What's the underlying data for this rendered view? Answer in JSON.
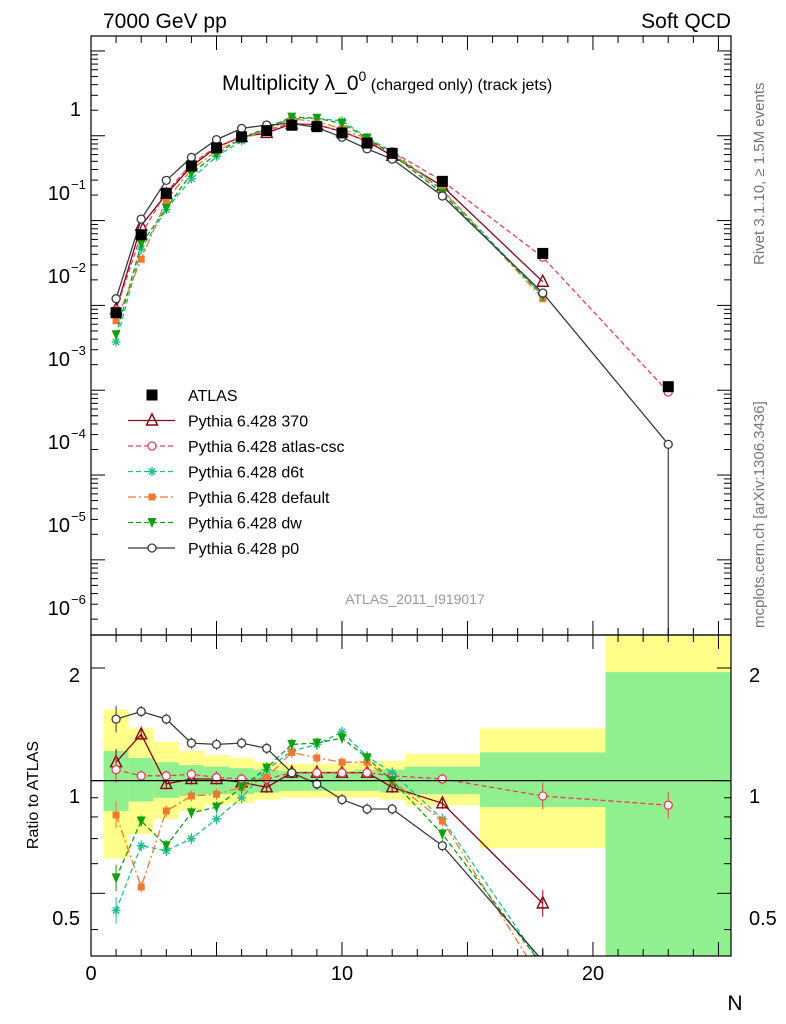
{
  "header": {
    "left": "7000 GeV pp",
    "right": "Soft QCD"
  },
  "plot_title": {
    "main": "Multiplicity λ_0",
    "sup": "0",
    "sub": " (charged only) (track jets)"
  },
  "side_labels": {
    "rivet": "Rivet 3.1.10, ≥ 1.5M events",
    "mcplots": "mcplots.cern.ch [arXiv:1306.3436]"
  },
  "analysis_id": "ATLAS_2011_I919017",
  "xlabel": "N",
  "ratio_ylabel": "Ratio to ATLAS",
  "main_tick_labels": [
    {
      "b": "1",
      "e": ""
    },
    {
      "b": "10",
      "e": "−1"
    },
    {
      "b": "10",
      "e": "−2"
    },
    {
      "b": "10",
      "e": "−3"
    },
    {
      "b": "10",
      "e": "−4"
    },
    {
      "b": "10",
      "e": "−5"
    },
    {
      "b": "10",
      "e": "−6"
    }
  ],
  "ratio_tick_labels": [
    "2",
    "1",
    "0.5"
  ],
  "x_tick_labels": [
    "0",
    "10",
    "20"
  ],
  "chart_data": {
    "type": "line",
    "x_range": [
      0,
      25.5
    ],
    "y_range_log": [
      1.3e-07,
      1.5
    ],
    "ratio_range_log": [
      0.34,
      2.45
    ],
    "x": [
      1,
      2,
      3,
      4,
      5,
      6,
      7,
      8,
      9,
      10,
      11,
      12,
      14,
      18,
      23
    ],
    "colors": {
      "ATLAS": "#000000",
      "Pythia 6.428 370": "#8b0015",
      "Pythia 6.428 atlas-csc": "#e8405a",
      "Pythia 6.428 d6t": "#20c08a",
      "Pythia 6.428 default": "#f07830",
      "Pythia 6.428 dw": "#10a010",
      "Pythia 6.428 p0": "#3a3a3a"
    },
    "series": [
      {
        "name": "ATLAS",
        "marker": "square",
        "dash": "none",
        "values": [
          0.00082,
          0.0068,
          0.021,
          0.044,
          0.072,
          0.097,
          0.115,
          0.133,
          0.128,
          0.108,
          0.082,
          0.062,
          0.029,
          0.0041,
          0.00011
        ]
      },
      {
        "name": "Pythia 6.428 370",
        "marker": "triangle",
        "dash": "none",
        "values": [
          0.0009,
          0.0087,
          0.0205,
          0.0435,
          0.073,
          0.097,
          0.108,
          0.138,
          0.135,
          0.112,
          0.086,
          0.058,
          0.0255,
          0.0019,
          null
        ]
      },
      {
        "name": "Pythia 6.428 atlas-csc",
        "marker": "circle",
        "dash": "5,3",
        "values": [
          0.00088,
          0.0069,
          0.0215,
          0.047,
          0.074,
          0.098,
          0.116,
          0.14,
          0.135,
          0.113,
          0.086,
          0.065,
          0.0293,
          0.0037,
          9.5e-05
        ]
      },
      {
        "name": "Pythia 6.428 d6t",
        "marker": "star",
        "dash": "5,3",
        "values": [
          0.00037,
          0.0046,
          0.0135,
          0.031,
          0.057,
          0.087,
          0.123,
          0.16,
          0.16,
          0.15,
          0.095,
          0.065,
          0.023,
          0.0013,
          null
        ]
      },
      {
        "name": "Pythia 6.428 default",
        "marker": "fsquare",
        "dash": "8,3,2,3",
        "values": [
          0.00066,
          0.0035,
          0.0174,
          0.04,
          0.066,
          0.093,
          0.117,
          0.158,
          0.147,
          0.121,
          0.092,
          0.062,
          0.0226,
          0.0012,
          null
        ]
      },
      {
        "name": "Pythia 6.428 dw",
        "marker": "ftriangle",
        "dash": "5,3",
        "values": [
          0.00045,
          0.0053,
          0.014,
          0.036,
          0.061,
          0.093,
          0.124,
          0.166,
          0.161,
          0.14,
          0.094,
          0.06,
          0.021,
          0.0013,
          null
        ]
      },
      {
        "name": "Pythia 6.428 p0",
        "marker": "circle",
        "dash": "none",
        "values": [
          0.0012,
          0.0104,
          0.0298,
          0.0556,
          0.09,
          0.122,
          0.134,
          0.14,
          0.125,
          0.096,
          0.07,
          0.053,
          0.0195,
          0.0014,
          2.3e-05
        ]
      }
    ],
    "ratio_series": [
      {
        "name": "Pythia 6.428 370",
        "values": [
          1.12,
          1.33,
          0.98,
          1.01,
          1.01,
          0.99,
          0.96,
          1.05,
          1.05,
          1.05,
          1.05,
          0.96,
          0.87,
          0.47,
          null
        ]
      },
      {
        "name": "Pythia 6.428 atlas-csc",
        "values": [
          1.07,
          1.03,
          1.03,
          1.04,
          1.02,
          1.01,
          1.01,
          1.05,
          1.05,
          1.05,
          1.05,
          1.03,
          1.01,
          0.91,
          0.86
        ]
      },
      {
        "name": "Pythia 6.428 d6t",
        "values": [
          0.45,
          0.67,
          0.65,
          0.7,
          0.79,
          0.9,
          1.07,
          1.2,
          1.25,
          1.35,
          1.16,
          1.05,
          0.79,
          0.32,
          null
        ]
      },
      {
        "name": "Pythia 6.428 default",
        "values": [
          0.81,
          0.52,
          0.83,
          0.91,
          0.92,
          0.96,
          1.02,
          1.19,
          1.15,
          1.12,
          1.12,
          1.0,
          0.78,
          0.29,
          null
        ]
      },
      {
        "name": "Pythia 6.428 dw",
        "values": [
          0.55,
          0.78,
          0.67,
          0.82,
          0.85,
          0.96,
          1.08,
          1.25,
          1.26,
          1.3,
          1.15,
          1.0,
          0.72,
          0.32,
          null
        ]
      },
      {
        "name": "Pythia 6.428 p0",
        "values": [
          1.46,
          1.53,
          1.46,
          1.26,
          1.25,
          1.26,
          1.22,
          1.05,
          0.98,
          0.89,
          0.84,
          0.84,
          0.67,
          0.33,
          0.22
        ]
      }
    ],
    "bands": [
      {
        "x": [
          0.5,
          1.5
        ],
        "inner": [
          0.83,
          1.2
        ],
        "outer": [
          0.62,
          1.55
        ]
      },
      {
        "x": [
          1.5,
          2.5
        ],
        "inner": [
          0.88,
          1.15
        ],
        "outer": [
          0.72,
          1.38
        ]
      },
      {
        "x": [
          2.5,
          3.5
        ],
        "inner": [
          0.9,
          1.12
        ],
        "outer": [
          0.79,
          1.27
        ]
      },
      {
        "x": [
          3.5,
          4.5
        ],
        "inner": [
          0.91,
          1.1
        ],
        "outer": [
          0.83,
          1.2
        ]
      },
      {
        "x": [
          4.5,
          5.5
        ],
        "inner": [
          0.92,
          1.09
        ],
        "outer": [
          0.86,
          1.17
        ]
      },
      {
        "x": [
          5.5,
          6.5
        ],
        "inner": [
          0.92,
          1.08
        ],
        "outer": [
          0.87,
          1.15
        ]
      },
      {
        "x": [
          6.5,
          7.5
        ],
        "inner": [
          0.93,
          1.07
        ],
        "outer": [
          0.89,
          1.12
        ]
      },
      {
        "x": [
          7.5,
          8.5
        ],
        "inner": [
          0.94,
          1.06
        ],
        "outer": [
          0.9,
          1.11
        ]
      },
      {
        "x": [
          8.5,
          9.5
        ],
        "inner": [
          0.94,
          1.06
        ],
        "outer": [
          0.9,
          1.11
        ]
      },
      {
        "x": [
          9.5,
          10.5
        ],
        "inner": [
          0.94,
          1.06
        ],
        "outer": [
          0.9,
          1.11
        ]
      },
      {
        "x": [
          10.5,
          11.5
        ],
        "inner": [
          0.94,
          1.07
        ],
        "outer": [
          0.9,
          1.12
        ]
      },
      {
        "x": [
          11.5,
          12.5
        ],
        "inner": [
          0.93,
          1.07
        ],
        "outer": [
          0.89,
          1.13
        ]
      },
      {
        "x": [
          12.5,
          15.5
        ],
        "inner": [
          0.92,
          1.09
        ],
        "outer": [
          0.86,
          1.18
        ]
      },
      {
        "x": [
          15.5,
          20.5
        ],
        "inner": [
          0.85,
          1.19
        ],
        "outer": [
          0.66,
          1.38
        ]
      },
      {
        "x": [
          20.5,
          25.5
        ],
        "inner": [
          0.34,
          1.95
        ],
        "outer": [
          0.34,
          2.45
        ]
      }
    ]
  }
}
